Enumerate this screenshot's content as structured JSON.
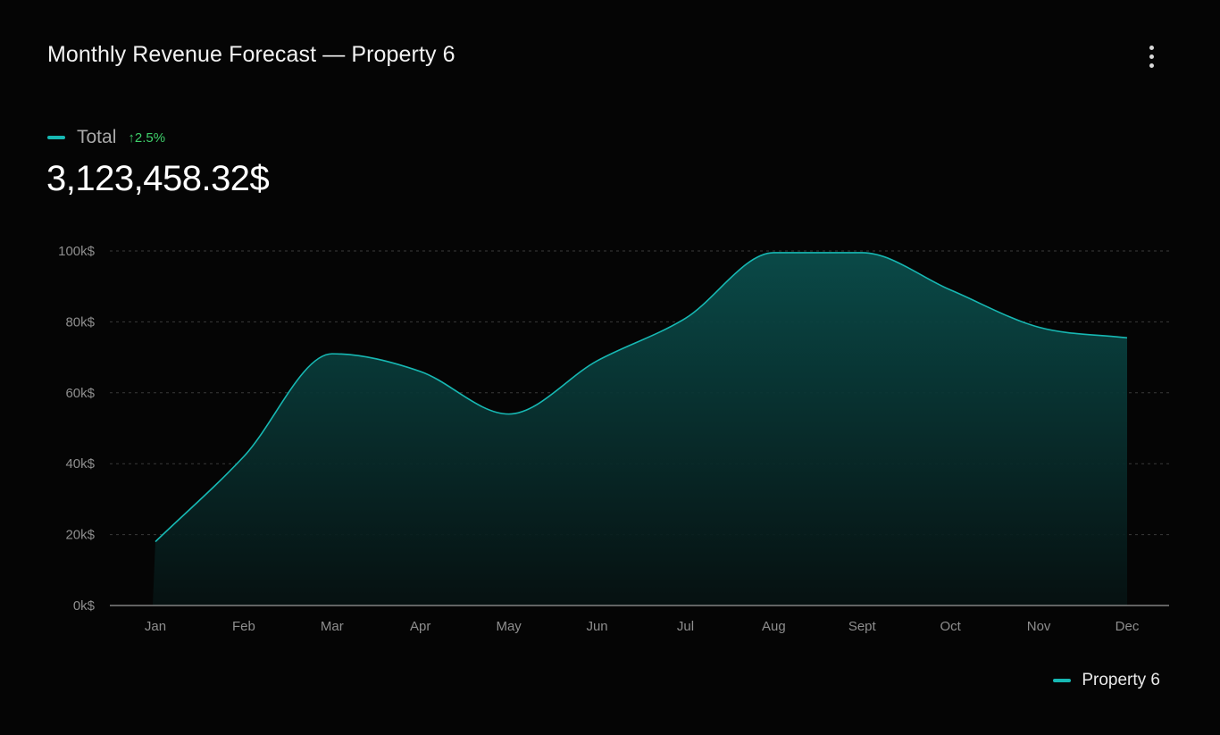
{
  "header": {
    "title": "Monthly Revenue Forecast — Property 6",
    "menu_icon": "more-vertical-icon"
  },
  "summary": {
    "label": "Total",
    "change": "↑2.5%",
    "value": "3,123,458.32$"
  },
  "colors": {
    "accent": "#17b8b3",
    "positive": "#3ecf6a",
    "background": "#050505"
  },
  "chart_data": {
    "type": "area",
    "title": "",
    "xlabel": "",
    "ylabel": "",
    "categories": [
      "Jan",
      "Feb",
      "Mar",
      "Apr",
      "May",
      "Jun",
      "Jul",
      "Aug",
      "Sept",
      "Oct",
      "Nov",
      "Dec"
    ],
    "y_ticks": [
      "0k$",
      "20k$",
      "40k$",
      "60k$",
      "80k$",
      "100k$"
    ],
    "ylim": [
      0,
      100
    ],
    "grid": true,
    "legend_position": "bottom-right",
    "series": [
      {
        "name": "Property 6",
        "color": "#17b8b3",
        "values": [
          18,
          42,
          71,
          66,
          54,
          69,
          81,
          99.5,
          99.5,
          89,
          78.5,
          75.5
        ]
      }
    ]
  }
}
